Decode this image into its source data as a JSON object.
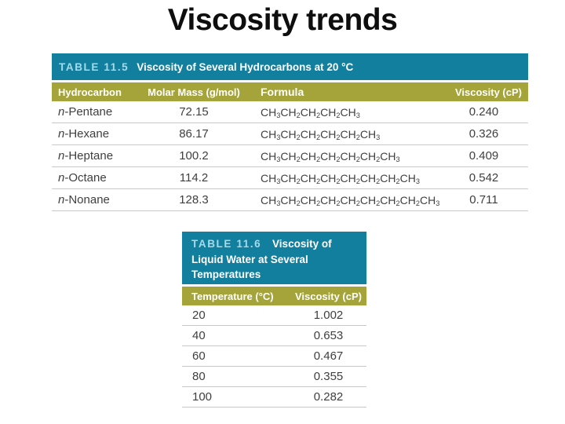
{
  "title": "Viscosity trends",
  "colors": {
    "teal": "#137f9e",
    "olive": "#a4a43a",
    "table_label_blue": "#a3dbea"
  },
  "table_hydrocarbons": {
    "label": "TABLE 11.5",
    "caption": "Viscosity of Several Hydrocarbons at 20 °C",
    "columns": [
      "Hydrocarbon",
      "Molar Mass (g/mol)",
      "Formula",
      "Viscosity (cP)"
    ],
    "rows": [
      {
        "prefix": "n",
        "name": "-Pentane",
        "molar_mass": "72.15",
        "formula": "CH3CH2CH2CH2CH3",
        "viscosity": "0.240"
      },
      {
        "prefix": "n",
        "name": "-Hexane",
        "molar_mass": "86.17",
        "formula": "CH3CH2CH2CH2CH2CH3",
        "viscosity": "0.326"
      },
      {
        "prefix": "n",
        "name": "-Heptane",
        "molar_mass": "100.2",
        "formula": "CH3CH2CH2CH2CH2CH2CH3",
        "viscosity": "0.409"
      },
      {
        "prefix": "n",
        "name": "-Octane",
        "molar_mass": "114.2",
        "formula": "CH3CH2CH2CH2CH2CH2CH2CH3",
        "viscosity": "0.542"
      },
      {
        "prefix": "n",
        "name": "-Nonane",
        "molar_mass": "128.3",
        "formula": "CH3CH2CH2CH2CH2CH2CH2CH2CH3",
        "viscosity": "0.711"
      }
    ]
  },
  "table_water": {
    "label": "TABLE 11.6",
    "caption": "Viscosity of Liquid Water at Several Temperatures",
    "columns": [
      "Temperature (°C)",
      "Viscosity (cP)"
    ],
    "rows": [
      {
        "temperature": "20",
        "viscosity": "1.002"
      },
      {
        "temperature": "40",
        "viscosity": "0.653"
      },
      {
        "temperature": "60",
        "viscosity": "0.467"
      },
      {
        "temperature": "80",
        "viscosity": "0.355"
      },
      {
        "temperature": "100",
        "viscosity": "0.282"
      }
    ]
  }
}
